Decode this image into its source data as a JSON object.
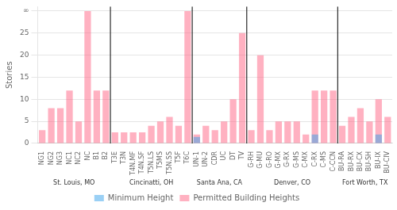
{
  "chart_data": {
    "type": "bar",
    "categories": [
      "NG1",
      "NG2",
      "NG3",
      "NC1",
      "NC2",
      "NC",
      "B1",
      "B2",
      "T3E",
      "T3N",
      "T4N.MF",
      "T4N.SF",
      "T5N.LS",
      "T5MS",
      "T5N.SS",
      "T5F",
      "T6C",
      "UN-1",
      "UN-2",
      "CDR",
      "UC",
      "DT",
      "TV",
      "G-RH",
      "G-MU",
      "G-RO",
      "G-MX",
      "G-RX",
      "G-MS",
      "C-MX",
      "C-RX",
      "C-MS",
      "C-CCN",
      "BU-RA",
      "BU-RX",
      "BU-CX",
      "BU-SH",
      "BU-IX",
      "BU-CIV"
    ],
    "series": [
      {
        "name": "Minimum Height",
        "values": [
          0,
          0,
          0,
          0,
          0,
          0,
          0,
          0,
          0,
          0,
          0,
          0,
          0,
          0,
          0,
          0,
          0,
          1.5,
          0,
          0,
          0,
          0,
          0,
          0,
          0,
          0,
          0,
          0,
          0,
          0,
          2,
          0,
          0,
          0,
          0,
          0,
          0,
          2,
          0
        ]
      },
      {
        "name": "Permitted Building Heights",
        "values": [
          3,
          8,
          8,
          12,
          5,
          30,
          12,
          12,
          2.5,
          2.5,
          2.5,
          2.5,
          4,
          5,
          6,
          4,
          30,
          2,
          4,
          3,
          5,
          10,
          25,
          3,
          20,
          3,
          5,
          5,
          5,
          2,
          12,
          12,
          12,
          4,
          6,
          8,
          5,
          10,
          6
        ]
      }
    ],
    "ylabel": "Stories",
    "ylim": [
      0,
      31
    ],
    "yticks": [
      0,
      5,
      10,
      15,
      20,
      25,
      {
        "value": 30,
        "label": "∞"
      }
    ],
    "grid": true,
    "legend": "bottom",
    "annotations": [
      {
        "text": "St. Louis, MO",
        "from": "NG1",
        "to": "B2"
      },
      {
        "text": "Cincinatti, OH",
        "from": "T3E",
        "to": "T6C"
      },
      {
        "text": "Santa Ana, CA",
        "from": "UN-1",
        "to": "TV"
      },
      {
        "text": "Denver, CO",
        "from": "G-RH",
        "to": "C-CCN"
      },
      {
        "text": "Fort Worth, TX",
        "from": "BU-RA",
        "to": "BU-CIV"
      }
    ]
  }
}
